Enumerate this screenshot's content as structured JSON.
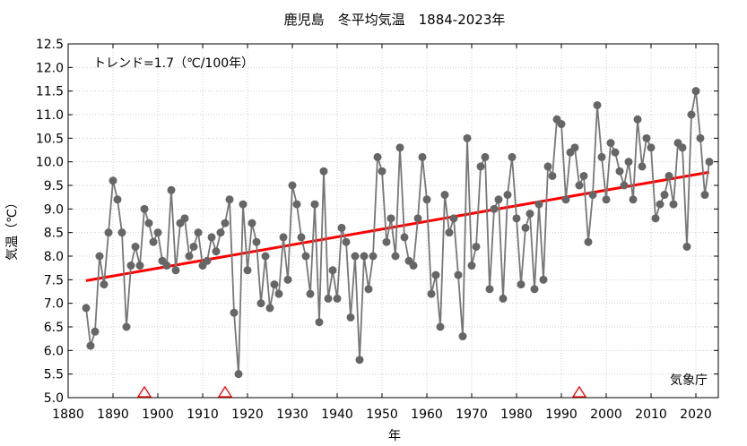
{
  "chart_data": {
    "type": "line",
    "title": "鹿児島　冬平均気温　1884-2023年",
    "xlabel": "年",
    "ylabel": "気温（℃）",
    "trend_label": "トレンド=1.7（℃/100年）",
    "credit": "気象庁",
    "xlim": [
      1880,
      2025
    ],
    "ylim": [
      5.0,
      12.5
    ],
    "xticks": [
      1880,
      1890,
      1900,
      1910,
      1920,
      1930,
      1940,
      1950,
      1960,
      1970,
      1980,
      1990,
      2000,
      2010,
      2020
    ],
    "yticks": [
      5.0,
      5.5,
      6.0,
      6.5,
      7.0,
      7.5,
      8.0,
      8.5,
      9.0,
      9.5,
      10.0,
      10.5,
      11.0,
      11.5,
      12.0,
      12.5
    ],
    "grid": true,
    "series": [
      {
        "name": "",
        "x": [
          1884,
          1885,
          1886,
          1887,
          1888,
          1889,
          1890,
          1891,
          1892,
          1893,
          1894,
          1895,
          1896,
          1897,
          1898,
          1899,
          1900,
          1901,
          1902,
          1903,
          1904,
          1905,
          1906,
          1907,
          1908,
          1909,
          1910,
          1911,
          1912,
          1913,
          1914,
          1915,
          1916,
          1917,
          1918,
          1919,
          1920,
          1921,
          1922,
          1923,
          1924,
          1925,
          1926,
          1927,
          1928,
          1929,
          1930,
          1931,
          1932,
          1933,
          1934,
          1935,
          1936,
          1937,
          1938,
          1939,
          1940,
          1941,
          1942,
          1943,
          1944,
          1945,
          1946,
          1947,
          1948,
          1949,
          1950,
          1951,
          1952,
          1953,
          1954,
          1955,
          1956,
          1957,
          1958,
          1959,
          1960,
          1961,
          1962,
          1963,
          1964,
          1965,
          1966,
          1967,
          1968,
          1969,
          1970,
          1971,
          1972,
          1973,
          1974,
          1975,
          1976,
          1977,
          1978,
          1979,
          1980,
          1981,
          1982,
          1983,
          1984,
          1985,
          1986,
          1987,
          1988,
          1989,
          1990,
          1991,
          1992,
          1993,
          1994,
          1995,
          1996,
          1997,
          1998,
          1999,
          2000,
          2001,
          2002,
          2003,
          2004,
          2005,
          2006,
          2007,
          2008,
          2009,
          2010,
          2011,
          2012,
          2013,
          2014,
          2015,
          2016,
          2017,
          2018,
          2019,
          2020,
          2021,
          2022,
          2023
        ],
        "values": [
          6.9,
          6.1,
          6.4,
          8.0,
          7.4,
          8.5,
          9.6,
          9.2,
          8.5,
          6.5,
          7.8,
          8.2,
          7.8,
          9.0,
          8.7,
          8.3,
          8.5,
          7.9,
          7.8,
          9.4,
          7.7,
          8.7,
          8.8,
          8.0,
          8.2,
          8.5,
          7.8,
          7.9,
          8.4,
          8.1,
          8.5,
          8.7,
          9.2,
          6.8,
          5.5,
          9.1,
          7.7,
          8.7,
          8.3,
          7.0,
          8.0,
          6.9,
          7.4,
          7.2,
          8.4,
          7.5,
          9.5,
          9.1,
          8.4,
          8.0,
          7.2,
          9.1,
          6.6,
          9.8,
          7.1,
          7.7,
          7.1,
          8.6,
          8.3,
          6.7,
          8.0,
          5.8,
          8.0,
          7.3,
          8.0,
          10.1,
          9.8,
          8.3,
          8.8,
          8.0,
          10.3,
          8.4,
          7.9,
          7.8,
          8.8,
          10.1,
          9.2,
          7.2,
          7.6,
          6.5,
          9.3,
          8.5,
          8.8,
          7.6,
          6.3,
          10.5,
          7.8,
          8.2,
          9.9,
          10.1,
          7.3,
          9.0,
          9.2,
          7.1,
          9.3,
          10.1,
          8.8,
          7.4,
          8.6,
          8.9,
          7.3,
          9.1,
          7.5,
          9.9,
          9.7,
          10.9,
          10.8,
          9.2,
          10.2,
          10.3,
          9.5,
          9.7,
          8.3,
          9.3,
          11.2,
          10.1,
          9.2,
          10.4,
          10.2,
          9.8,
          9.5,
          10.0,
          9.2,
          10.9,
          9.9,
          10.5,
          10.3,
          8.8,
          9.1,
          9.3,
          9.7,
          9.1,
          10.4,
          10.3,
          8.2,
          11.0,
          11.5,
          10.5,
          9.3,
          10.0
        ]
      }
    ],
    "trend": {
      "x": [
        1884,
        2023
      ],
      "values": [
        7.48,
        9.78
      ],
      "color": "#ff0000"
    },
    "relocation_markers": [
      1897,
      1915,
      1994
    ],
    "colors": {
      "series": "#777777",
      "marker": "#666666",
      "trend": "#ff0000",
      "relocation": "#ff0000",
      "grid": "#cfcfcf"
    }
  }
}
